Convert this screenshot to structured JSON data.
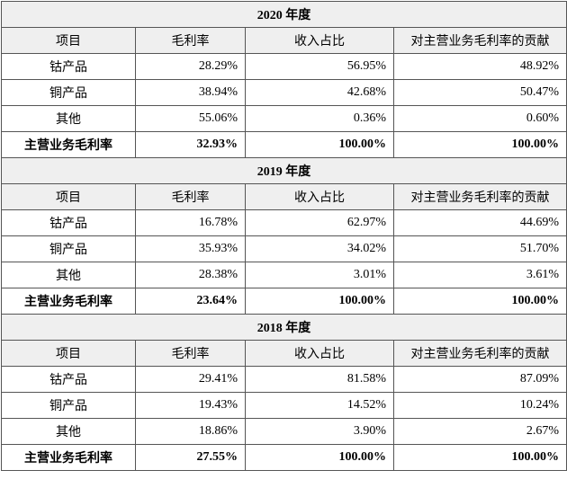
{
  "sections": [
    {
      "title": "2020 年度",
      "header": [
        "项目",
        "毛利率",
        "收入占比",
        "对主营业务毛利率的贡献"
      ],
      "rows": [
        [
          "钴产品",
          "28.29%",
          "56.95%",
          "48.92%"
        ],
        [
          "铜产品",
          "38.94%",
          "42.68%",
          "50.47%"
        ],
        [
          "其他",
          "55.06%",
          "0.36%",
          "0.60%"
        ]
      ],
      "total": [
        "主营业务毛利率",
        "32.93%",
        "100.00%",
        "100.00%"
      ]
    },
    {
      "title": "2019 年度",
      "header": [
        "项目",
        "毛利率",
        "收入占比",
        "对主营业务毛利率的贡献"
      ],
      "rows": [
        [
          "钴产品",
          "16.78%",
          "62.97%",
          "44.69%"
        ],
        [
          "铜产品",
          "35.93%",
          "34.02%",
          "51.70%"
        ],
        [
          "其他",
          "28.38%",
          "3.01%",
          "3.61%"
        ]
      ],
      "total": [
        "主营业务毛利率",
        "23.64%",
        "100.00%",
        "100.00%"
      ]
    },
    {
      "title": "2018 年度",
      "header": [
        "项目",
        "毛利率",
        "收入占比",
        "对主营业务毛利率的贡献"
      ],
      "rows": [
        [
          "钴产品",
          "29.41%",
          "81.58%",
          "87.09%"
        ],
        [
          "铜产品",
          "19.43%",
          "14.52%",
          "10.24%"
        ],
        [
          "其他",
          "18.86%",
          "3.90%",
          "2.67%"
        ]
      ],
      "total": [
        "主营业务毛利率",
        "27.55%",
        "100.00%",
        "100.00%"
      ]
    }
  ]
}
